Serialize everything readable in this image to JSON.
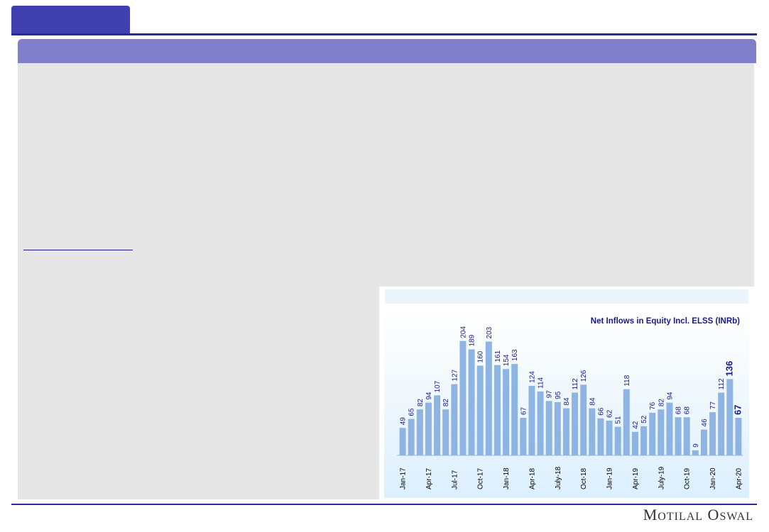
{
  "brand": {
    "logo_text": "Motilal Oswal",
    "colors": {
      "primary": "#3f3fae",
      "banner": "#7f7fcc",
      "rule": "#2a2a96",
      "bar": "#8eb4e3"
    }
  },
  "chart_data": {
    "type": "bar",
    "title": "Net Inflows  in Equity Incl. ELSS (INRb)",
    "xlabel": "",
    "ylabel": "",
    "ylim": [
      0,
      220
    ],
    "grid": false,
    "series_color": "#8eb4e3",
    "categories": [
      "Jan-17",
      "Feb-17",
      "Mar-17",
      "Apr-17",
      "May-17",
      "Jun-17",
      "Jul-17",
      "Aug-17",
      "Sep-17",
      "Oct-17",
      "Nov-17",
      "Dec-17",
      "Jan-18",
      "Feb-18",
      "Mar-18",
      "Apr-18",
      "May-18",
      "Jun-18",
      "July-18",
      "Aug-18",
      "Sep-18",
      "Oct-18",
      "Nov-18",
      "Dec-18",
      "Jan-19",
      "Feb-19",
      "Mar-19",
      "Apr-19",
      "May-19",
      "Jun-19",
      "July-19",
      "Aug-19",
      "Sep-19",
      "Oct-19",
      "Nov-19",
      "Dec-19",
      "Jan-20",
      "Feb-20",
      "Mar-20",
      "Apr-20"
    ],
    "x_tick_labels": [
      "Jan-17",
      "",
      "",
      "Apr-17",
      "",
      "",
      "Jul-17",
      "",
      "",
      "Oct-17",
      "",
      "",
      "Jan-18",
      "",
      "",
      "Apr-18",
      "",
      "",
      "July-18",
      "",
      "",
      "Oct-18",
      "",
      "",
      "Jan-19",
      "",
      "",
      "Apr-19",
      "",
      "",
      "July-19",
      "",
      "",
      "Oct-19",
      "",
      "",
      "Jan-20",
      "",
      "",
      "Apr-20"
    ],
    "values": [
      49,
      65,
      82,
      94,
      107,
      82,
      127,
      204,
      189,
      160,
      203,
      161,
      154,
      163,
      67,
      124,
      114,
      97,
      95,
      84,
      112,
      126,
      84,
      66,
      62,
      51,
      118,
      42,
      52,
      76,
      82,
      94,
      68,
      68,
      9,
      46,
      77,
      112,
      136,
      67
    ],
    "highlighted_labels": [
      38,
      39
    ]
  }
}
